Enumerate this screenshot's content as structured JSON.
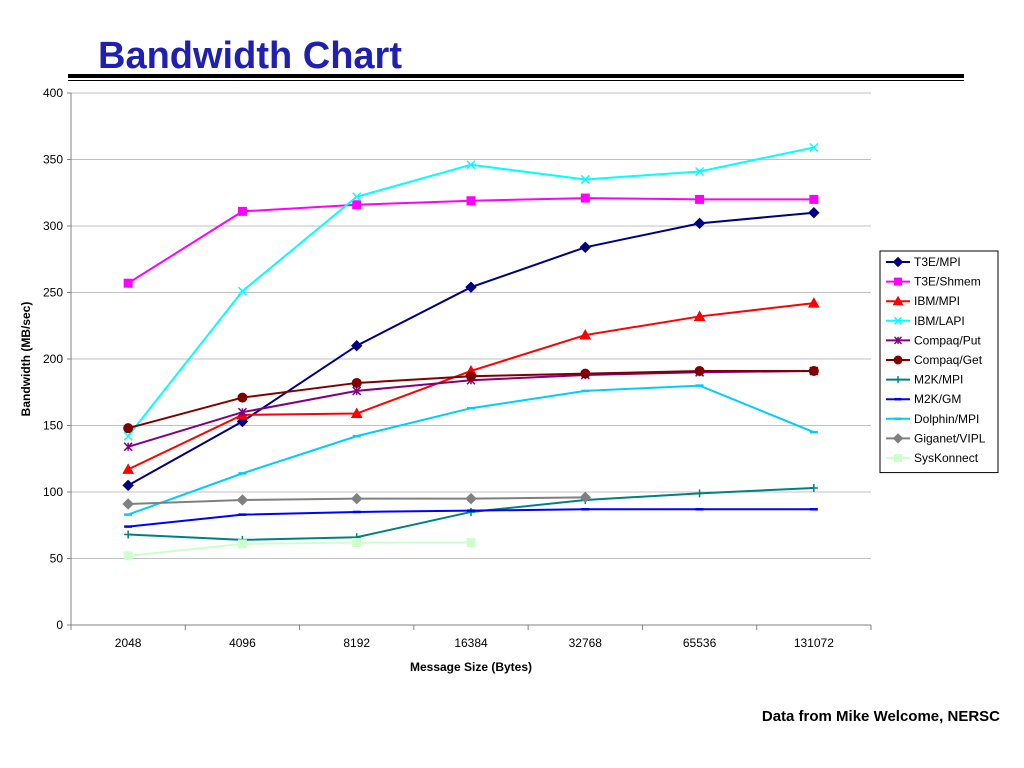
{
  "slide": {
    "title": "Bandwidth Chart",
    "credit": "Data from Mike Welcome, NERSC"
  },
  "chart_data": {
    "type": "line",
    "title": "",
    "xlabel": "Message Size (Bytes)",
    "ylabel": "Bandwidth (MB/sec)",
    "categories": [
      "2048",
      "4096",
      "8192",
      "16384",
      "32768",
      "65536",
      "131072"
    ],
    "ylim": [
      0,
      400
    ],
    "yticks": [
      0,
      50,
      100,
      150,
      200,
      250,
      300,
      350,
      400
    ],
    "grid": true,
    "legend_position": "right",
    "series": [
      {
        "name": "T3E/MPI",
        "color": "#000080",
        "marker": "diamond",
        "values": [
          105,
          153,
          210,
          254,
          284,
          302,
          310
        ]
      },
      {
        "name": "T3E/Shmem",
        "color": "#ff00ff",
        "marker": "square",
        "values": [
          257,
          311,
          316,
          319,
          321,
          320,
          320
        ]
      },
      {
        "name": "IBM/MPI",
        "color": "#ff0000",
        "marker": "triangle",
        "values": [
          117,
          158,
          159,
          191,
          218,
          232,
          242
        ]
      },
      {
        "name": "IBM/LAPI",
        "color": "#00ffff",
        "marker": "x",
        "values": [
          142,
          251,
          322,
          346,
          335,
          341,
          359
        ]
      },
      {
        "name": "Compaq/Put",
        "color": "#800080",
        "marker": "star",
        "values": [
          134,
          160,
          176,
          184,
          188,
          190,
          191
        ]
      },
      {
        "name": "Compaq/Get",
        "color": "#800000",
        "marker": "circle",
        "values": [
          148,
          171,
          182,
          187,
          189,
          191,
          191
        ]
      },
      {
        "name": "M2K/MPI",
        "color": "#008080",
        "marker": "plus",
        "values": [
          68,
          64,
          66,
          85,
          94,
          99,
          103
        ]
      },
      {
        "name": "M2K/GM",
        "color": "#0000ff",
        "marker": "dash",
        "values": [
          74,
          83,
          85,
          86,
          87,
          87,
          87
        ]
      },
      {
        "name": "Dolphin/MPI",
        "color": "#00ccff",
        "marker": "dash",
        "values": [
          83,
          114,
          142,
          163,
          176,
          180,
          145
        ]
      },
      {
        "name": "Giganet/VIPL",
        "color": "#808080",
        "marker": "diamond",
        "values": [
          91,
          94,
          95,
          95,
          96,
          null,
          null
        ]
      },
      {
        "name": "SysKonnect",
        "color": "#ccffcc",
        "marker": "square",
        "values": [
          52,
          61,
          62,
          62,
          null,
          null,
          null
        ]
      }
    ]
  }
}
